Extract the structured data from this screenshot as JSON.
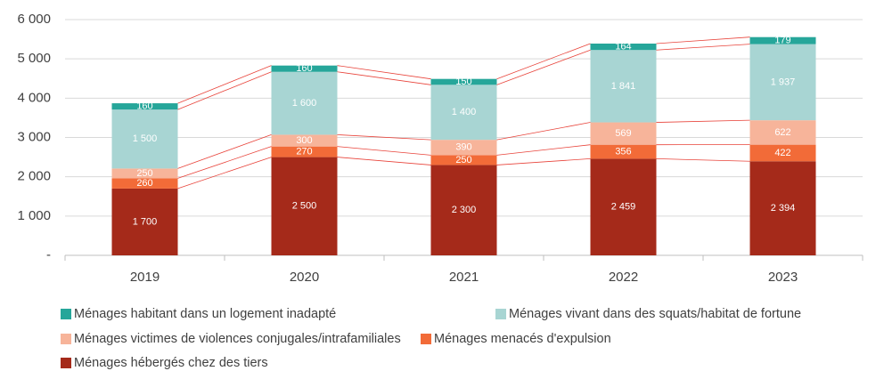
{
  "chart_data": {
    "type": "stacked_bar",
    "categories": [
      "2019",
      "2020",
      "2021",
      "2022",
      "2023"
    ],
    "series": [
      {
        "name": "Ménages habitant dans un logement inadapté",
        "color": "#26a69a",
        "values": [
          160,
          160,
          150,
          164,
          179
        ]
      },
      {
        "name": "Ménages vivant dans des squats/habitat de fortune",
        "color": "#a8d5d3",
        "values": [
          1500,
          1600,
          1400,
          1841,
          1937
        ],
        "value_labels": [
          "1 500",
          "1 600",
          "1 400",
          "1 841",
          "1 937"
        ]
      },
      {
        "name": "Ménages victimes de violences conjugales/intrafamiliales",
        "color": "#f7b49a",
        "values": [
          250,
          300,
          390,
          569,
          622
        ]
      },
      {
        "name": "Ménages menacés d'expulsion",
        "color": "#f26b38",
        "values": [
          260,
          270,
          250,
          356,
          422
        ]
      },
      {
        "name": "Ménages hébergés chez des tiers",
        "color": "#a52a1a",
        "values": [
          1700,
          2500,
          2300,
          2459,
          2394
        ],
        "value_labels": [
          "1 700",
          "2 500",
          "2 300",
          "2 459",
          "2 394"
        ]
      }
    ],
    "ylim": [
      0,
      6000
    ],
    "yticks": [
      {
        "value": 0,
        "label": "-"
      },
      {
        "value": 1000,
        "label": "1 000"
      },
      {
        "value": 2000,
        "label": "2 000"
      },
      {
        "value": 3000,
        "label": "3 000"
      },
      {
        "value": 4000,
        "label": "4 000"
      },
      {
        "value": 5000,
        "label": "5 000"
      },
      {
        "value": 6000,
        "label": "6 000"
      }
    ],
    "grid": true
  }
}
